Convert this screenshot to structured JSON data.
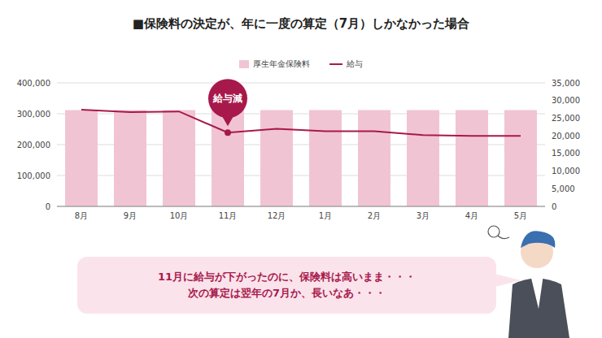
{
  "chart_data": {
    "type": "bar",
    "title": "■保険料の決定が、年に一度の算定（7月）しかなかった場合",
    "categories": [
      "8月",
      "9月",
      "10月",
      "11月",
      "12月",
      "1月",
      "2月",
      "3月",
      "4月",
      "5月"
    ],
    "series": [
      {
        "name": "厚生年金保険料",
        "type": "bar",
        "color": "#f1c4d4",
        "values": [
          312000,
          312000,
          312000,
          312000,
          312000,
          312000,
          312000,
          312000,
          312000,
          312000
        ]
      },
      {
        "name": "給与",
        "type": "line",
        "color": "#a8194b",
        "axis": "y2",
        "values": [
          27400,
          26700,
          26900,
          20900,
          22000,
          21300,
          21300,
          20200,
          20000,
          20000
        ]
      }
    ],
    "ylim": [
      0,
      400000
    ],
    "yticks": [
      0,
      {
        "value": 100000,
        "label": "100,000"
      },
      {
        "value": 200000,
        "label": "200,000"
      },
      {
        "value": 300000,
        "label": "300,000"
      },
      {
        "value": 400000,
        "label": "400,000"
      }
    ],
    "y2lim": [
      0,
      35000
    ],
    "y2ticks": [
      0,
      {
        "value": 5000,
        "label": "5,000"
      },
      {
        "value": 10000,
        "label": "10,000"
      },
      {
        "value": 15000,
        "label": "15,000"
      },
      {
        "value": 20000,
        "label": "20,000"
      },
      {
        "value": 25000,
        "label": "25,000"
      },
      {
        "value": 30000,
        "label": "30,000"
      },
      {
        "value": 35000,
        "label": "35,000"
      }
    ],
    "grid": true,
    "legend": "top",
    "annotations": [
      {
        "text": "給与減",
        "category": "11月"
      }
    ],
    "callout": [
      "11月に給与が下がったのに、保険料は高いまま・・・",
      "次の算定は翌年の7月か、長いなあ・・・"
    ]
  }
}
